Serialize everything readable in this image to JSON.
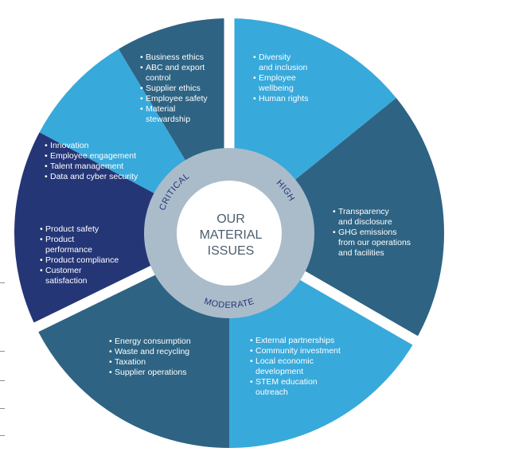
{
  "colors": {
    "dark_slate": "#2e6383",
    "bright_blue": "#38a9db",
    "navy": "#253677",
    "ring_grey": "#aabcca",
    "center_white": "#ffffff",
    "center_text": "#4b5f6e"
  },
  "center": {
    "lines": [
      "OUR",
      "MATERIAL",
      "ISSUES"
    ]
  },
  "ring": {
    "critical": "CRITICAL",
    "high": "HIGH",
    "moderate": "MODERATE"
  },
  "segments": [
    {
      "id": "high-top",
      "color": "bright_blue",
      "items": [
        {
          "lines": [
            "Diversity",
            "and inclusion"
          ]
        },
        {
          "lines": [
            "Employee",
            "wellbeing"
          ]
        },
        {
          "lines": [
            "Human rights"
          ]
        }
      ]
    },
    {
      "id": "high-right",
      "color": "dark_slate",
      "items": [
        {
          "lines": [
            "Transparency",
            "and disclosure"
          ]
        },
        {
          "lines": [
            "GHG emissions",
            "from our operations",
            "and facilities"
          ]
        }
      ]
    },
    {
      "id": "moderate-right",
      "color": "bright_blue",
      "items": [
        {
          "lines": [
            "External partnerships"
          ]
        },
        {
          "lines": [
            "Community investment"
          ]
        },
        {
          "lines": [
            "Local economic",
            "development"
          ]
        },
        {
          "lines": [
            "STEM education",
            "outreach"
          ]
        }
      ]
    },
    {
      "id": "moderate-left",
      "color": "dark_slate",
      "items": [
        {
          "lines": [
            "Energy consumption"
          ]
        },
        {
          "lines": [
            "Waste and recycling"
          ]
        },
        {
          "lines": [
            "Taxation"
          ]
        },
        {
          "lines": [
            "Supplier operations"
          ]
        }
      ]
    },
    {
      "id": "critical-left",
      "color": "navy",
      "items": [
        {
          "lines": [
            "Product safety"
          ]
        },
        {
          "lines": [
            "Product",
            "performance"
          ]
        },
        {
          "lines": [
            "Product compliance"
          ]
        },
        {
          "lines": [
            "Customer",
            "satisfaction"
          ]
        }
      ]
    },
    {
      "id": "critical-upper-left",
      "color": "bright_blue",
      "items": [
        {
          "lines": [
            "Innovation"
          ]
        },
        {
          "lines": [
            "Employee engagement"
          ]
        },
        {
          "lines": [
            "Talent management"
          ]
        },
        {
          "lines": [
            "Data and cyber security"
          ]
        }
      ]
    },
    {
      "id": "critical-top",
      "color": "dark_slate",
      "items": [
        {
          "lines": [
            "Business ethics"
          ]
        },
        {
          "lines": [
            "ABC and export",
            "control"
          ]
        },
        {
          "lines": [
            "Supplier ethics"
          ]
        },
        {
          "lines": [
            "Employee safety"
          ]
        },
        {
          "lines": [
            "Material",
            "stewardship"
          ]
        }
      ]
    }
  ]
}
